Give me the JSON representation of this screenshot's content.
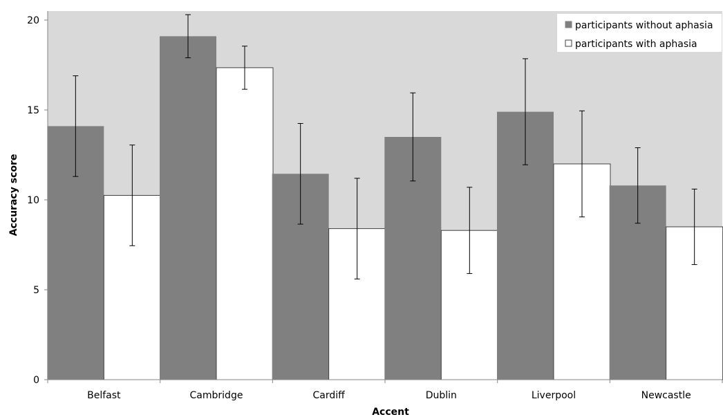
{
  "chart_data": {
    "type": "bar",
    "title": "",
    "xlabel": "Accent",
    "ylabel": "Accuracy score",
    "categories": [
      "Belfast",
      "Cambridge",
      "Cardiff",
      "Dublin",
      "Liverpool",
      "Newcastle"
    ],
    "ylim": [
      0,
      20.5
    ],
    "yticks": [
      0,
      5,
      10,
      15,
      20
    ],
    "grid": false,
    "plot_background": "#d9d9d9",
    "legend_position": "top-right",
    "series": [
      {
        "name": "participants without aphasia",
        "color": "#808080",
        "values": [
          14.1,
          19.1,
          11.45,
          13.5,
          14.9,
          10.8
        ],
        "error": [
          2.8,
          1.2,
          2.8,
          2.45,
          2.95,
          2.1
        ]
      },
      {
        "name": "participants with aphasia",
        "color": "#ffffff",
        "values": [
          10.25,
          17.35,
          8.4,
          8.3,
          12.0,
          8.5
        ],
        "error": [
          2.8,
          1.2,
          2.8,
          2.4,
          2.95,
          2.1
        ]
      }
    ]
  }
}
